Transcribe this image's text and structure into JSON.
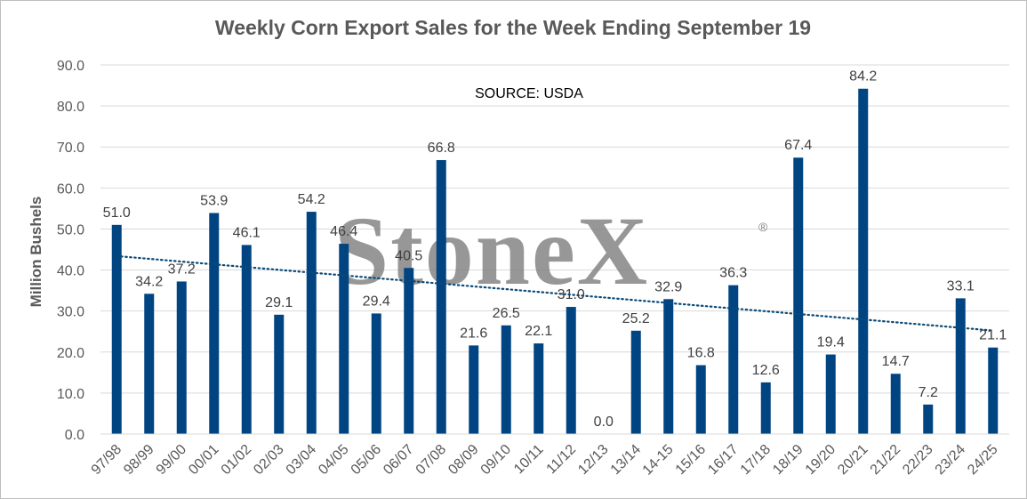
{
  "chart_data": {
    "type": "bar",
    "title": "Weekly Corn Export Sales for the Week Ending September 19",
    "ylabel": "Million Bushels",
    "xlabel": "",
    "ylim": [
      0,
      90
    ],
    "yticks": [
      "0.0",
      "10.0",
      "20.0",
      "30.0",
      "40.0",
      "50.0",
      "60.0",
      "70.0",
      "80.0",
      "90.0"
    ],
    "grid": true,
    "legend": "none",
    "bar_color": "#004481",
    "trendline": {
      "style": "dotted",
      "type": "linear",
      "color": "#0b4a78"
    },
    "annotation": "SOURCE: USDA",
    "watermark": {
      "text": "StoneX",
      "mark": "®"
    },
    "categories": [
      "97/98",
      "98/99",
      "99/00",
      "00/01",
      "01/02",
      "02/03",
      "03/04",
      "04/05",
      "05/06",
      "06/07",
      "07/08",
      "08/09",
      "09/10",
      "10/11",
      "11/12",
      "12/13",
      "13/14",
      "14-15",
      "15/16",
      "16/17",
      "17/18",
      "18/19",
      "19/20",
      "20/21",
      "21/22",
      "22/23",
      "23/24",
      "24/25"
    ],
    "values": [
      51.0,
      34.2,
      37.2,
      53.9,
      46.1,
      29.1,
      54.2,
      46.4,
      29.4,
      40.5,
      66.8,
      21.6,
      26.5,
      22.1,
      31.0,
      0.0,
      25.2,
      32.9,
      16.8,
      36.3,
      12.6,
      67.4,
      19.4,
      84.2,
      14.7,
      7.2,
      33.1,
      21.1
    ],
    "data_labels": [
      "51.0",
      "34.2",
      "37.2",
      "53.9",
      "46.1",
      "29.1",
      "54.2",
      "46.4",
      "29.4",
      "40.5",
      "66.8",
      "21.6",
      "26.5",
      "22.1",
      "31.0",
      "0.0",
      "25.2",
      "32.9",
      "16.8",
      "36.3",
      "12.6",
      "67.4",
      "19.4",
      "84.2",
      "14.7",
      "7.2",
      "33.1",
      "21.1"
    ]
  }
}
